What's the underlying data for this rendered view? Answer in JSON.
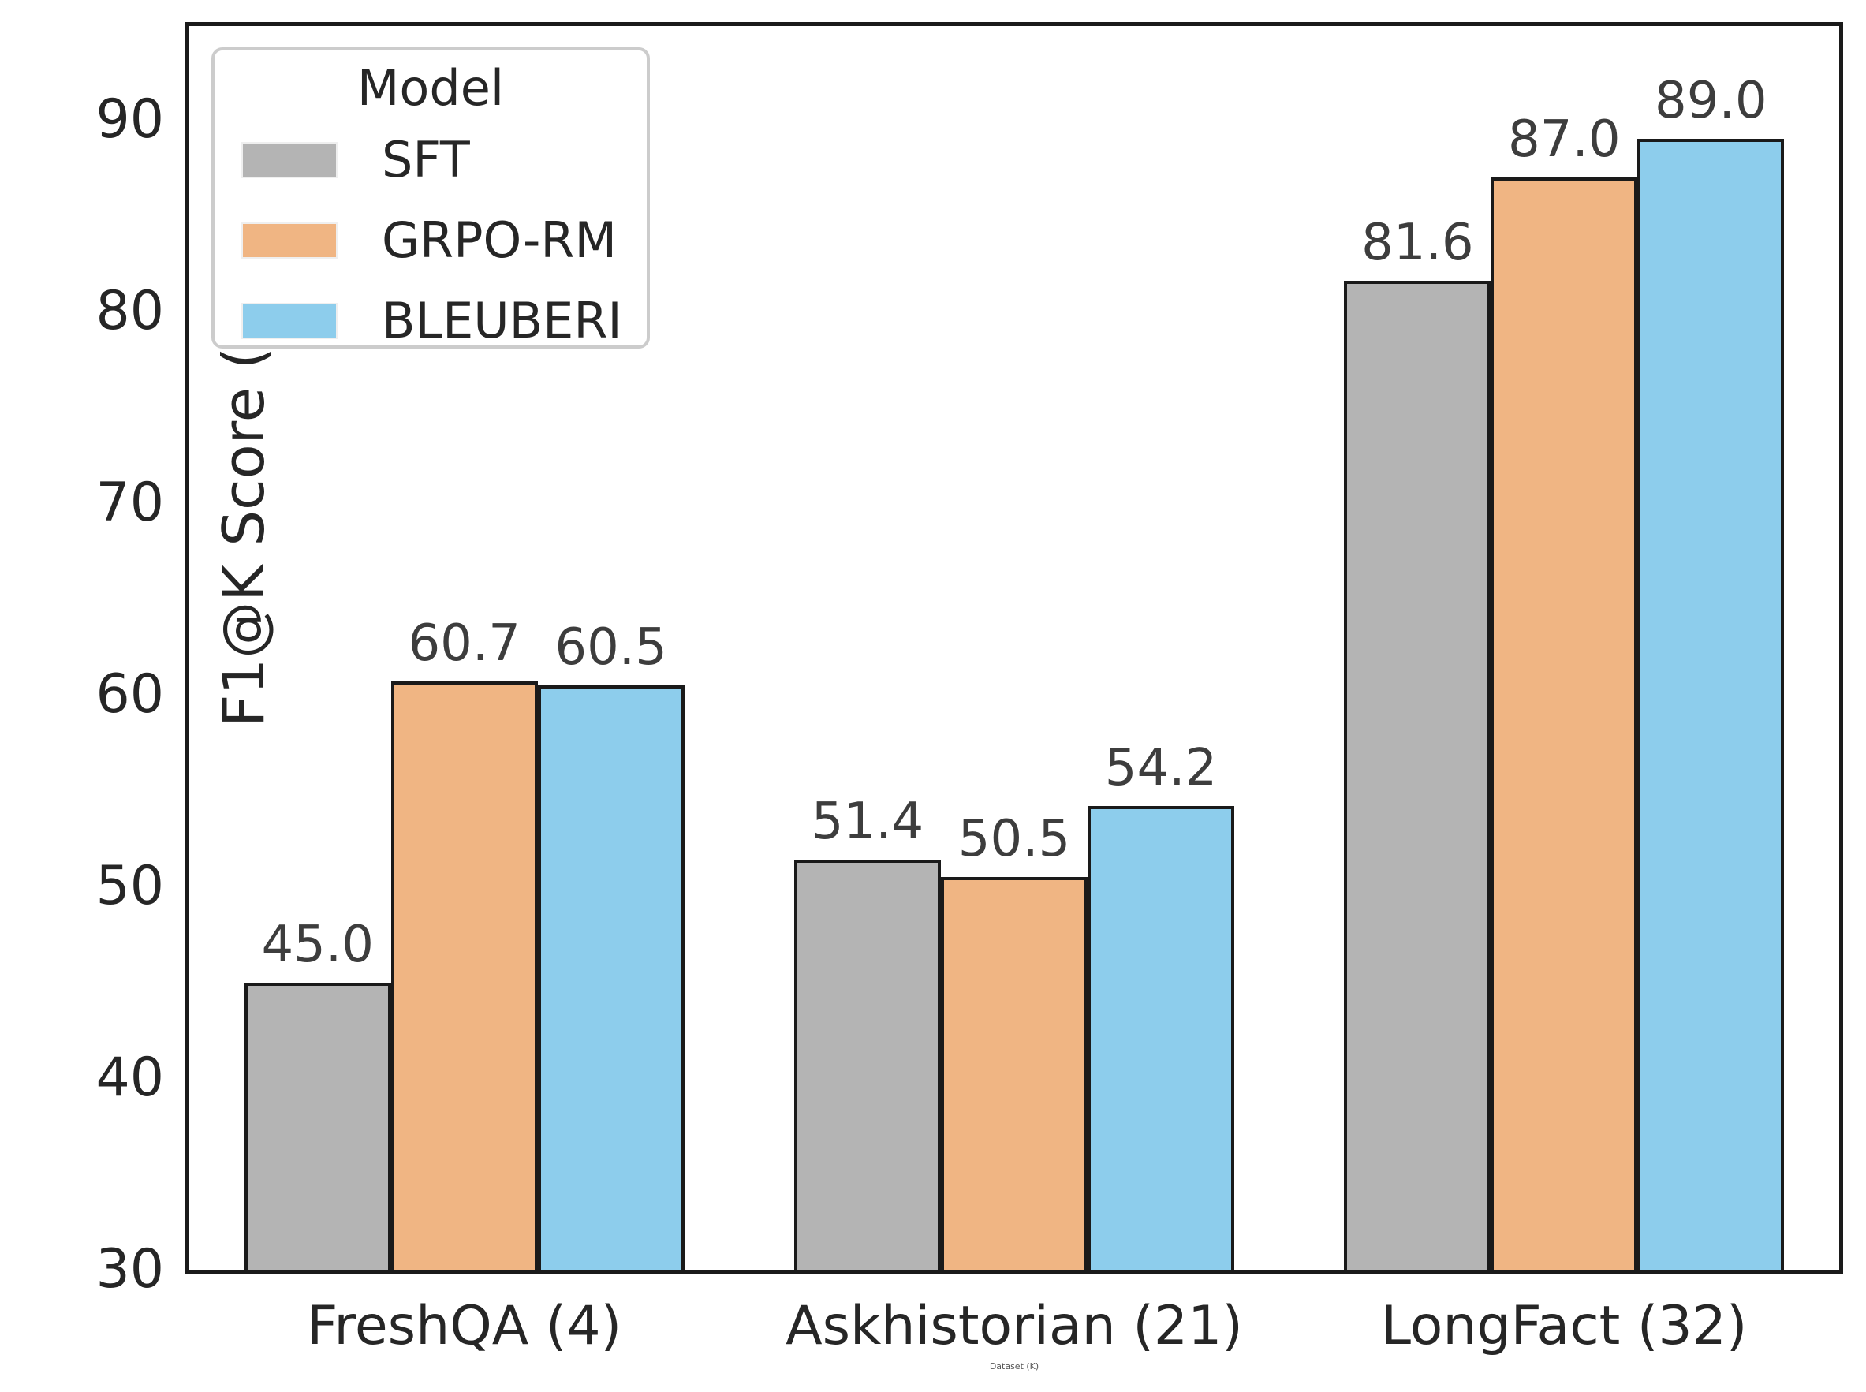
{
  "figure": {
    "y_axis_label": "F1@K Score (%)",
    "x_axis_label": "Dataset (K)"
  },
  "legend": {
    "title": "Model",
    "entries": [
      {
        "label": "SFT",
        "color": "#b4b4b4"
      },
      {
        "label": "GRPO-RM",
        "color": "#f0b583"
      },
      {
        "label": "BLEUBERI",
        "color": "#8dcdec"
      }
    ]
  },
  "chart_data": {
    "type": "bar",
    "title": "",
    "categories": [
      "FreshQA (4)",
      "Askhistorian (21)",
      "LongFact (32)"
    ],
    "series": [
      {
        "name": "SFT",
        "color": "#b4b4b4",
        "values": [
          45.0,
          51.4,
          81.6
        ],
        "labels": [
          "45.0",
          "51.4",
          "81.6"
        ]
      },
      {
        "name": "GRPO-RM",
        "color": "#f0b583",
        "values": [
          60.7,
          50.5,
          87.0
        ],
        "labels": [
          "60.7",
          "50.5",
          "87.0"
        ]
      },
      {
        "name": "BLEUBERI",
        "color": "#8dcdec",
        "values": [
          60.5,
          54.2,
          89.0
        ],
        "labels": [
          "60.5",
          "54.2",
          "89.0"
        ]
      }
    ],
    "xlabel": "Dataset (K)",
    "ylabel": "F1@K Score (%)",
    "ylim": [
      30,
      94.9
    ],
    "yticks": [
      30,
      40,
      50,
      60,
      70,
      80,
      90
    ],
    "grid": false,
    "legend_position": "upper left",
    "group_width_fraction": 0.8,
    "edge_color": "#1a1a1a"
  }
}
